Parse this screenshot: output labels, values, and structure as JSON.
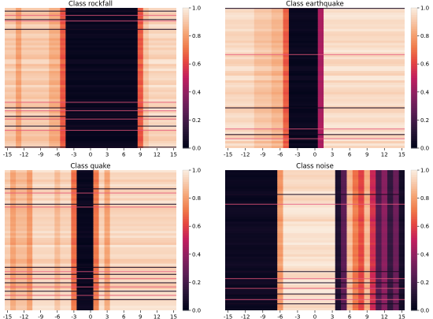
{
  "colorbar_ticks": [
    "0.0",
    "0.2",
    "0.4",
    "0.6",
    "0.8",
    "1.0"
  ],
  "colormap": {
    "name": "rocket",
    "stops": [
      [
        0.0,
        "#03051a"
      ],
      [
        0.13,
        "#2b1639"
      ],
      [
        0.25,
        "#5a1d54"
      ],
      [
        0.38,
        "#8a2060"
      ],
      [
        0.5,
        "#c11d5e"
      ],
      [
        0.62,
        "#e6473f"
      ],
      [
        0.72,
        "#f07a4a"
      ],
      [
        0.82,
        "#f5a474"
      ],
      [
        0.9,
        "#f7c4a3"
      ],
      [
        1.0,
        "#faebdd"
      ]
    ]
  },
  "chart_data": [
    {
      "type": "heatmap",
      "title": "Class rockfall",
      "x_ticks": [
        -15,
        -12,
        -9,
        -6,
        -3,
        0,
        3,
        6,
        9,
        12,
        15
      ],
      "x_range": [
        -15,
        16
      ],
      "value_range": [
        0,
        1
      ],
      "column_profile": [
        {
          "x0": -15,
          "x1": -13,
          "value": 0.92
        },
        {
          "x0": -13,
          "x1": -12,
          "value": 0.82
        },
        {
          "x0": -12,
          "x1": -7,
          "value": 0.92
        },
        {
          "x0": -7,
          "x1": -5,
          "value": 0.85
        },
        {
          "x0": -5,
          "x1": -4,
          "value": 0.66
        },
        {
          "x0": -4,
          "x1": 9,
          "value": 0.02
        },
        {
          "x0": 9,
          "x1": 10,
          "value": 0.66
        },
        {
          "x0": 10,
          "x1": 11,
          "value": 0.9
        },
        {
          "x0": 11,
          "x1": 16,
          "value": 0.95
        }
      ],
      "row_anomalies": [
        0.02,
        0.05,
        0.08,
        0.09,
        0.15,
        0.67,
        0.71,
        0.73,
        0.77,
        0.79,
        0.84,
        0.87,
        0.99
      ]
    },
    {
      "type": "heatmap",
      "title": "Class earthquake",
      "x_ticks": [
        -15,
        -12,
        -9,
        -6,
        -3,
        0,
        3,
        6,
        9,
        12,
        15
      ],
      "x_range": [
        -15,
        16
      ],
      "value_range": [
        0,
        1
      ],
      "column_profile": [
        {
          "x0": -15,
          "x1": -10,
          "value": 0.95
        },
        {
          "x0": -10,
          "x1": -7,
          "value": 0.9
        },
        {
          "x0": -7,
          "x1": -5,
          "value": 0.86
        },
        {
          "x0": -5,
          "x1": -4,
          "value": 0.66
        },
        {
          "x0": -4,
          "x1": 1,
          "value": 0.02
        },
        {
          "x0": 1,
          "x1": 2,
          "value": 0.45
        },
        {
          "x0": 2,
          "x1": 16,
          "value": 0.96
        }
      ],
      "row_anomalies": [
        0.0,
        0.33,
        0.71,
        0.86,
        0.9,
        0.93
      ]
    },
    {
      "type": "heatmap",
      "title": "Class quake",
      "x_ticks": [
        -15,
        -12,
        -9,
        -6,
        -3,
        0,
        3,
        6,
        9,
        12,
        15
      ],
      "x_range": [
        -15,
        16
      ],
      "value_range": [
        0,
        1
      ],
      "column_profile": [
        {
          "x0": -15,
          "x1": -14,
          "value": 0.92
        },
        {
          "x0": -14,
          "x1": -13,
          "value": 0.82
        },
        {
          "x0": -13,
          "x1": -11,
          "value": 0.88
        },
        {
          "x0": -11,
          "x1": -10,
          "value": 0.8
        },
        {
          "x0": -10,
          "x1": -6,
          "value": 0.95
        },
        {
          "x0": -6,
          "x1": -5,
          "value": 0.88
        },
        {
          "x0": -5,
          "x1": -3,
          "value": 0.94
        },
        {
          "x0": -3,
          "x1": -2,
          "value": 0.7
        },
        {
          "x0": -2,
          "x1": 1,
          "value": 0.02
        },
        {
          "x0": 1,
          "x1": 2,
          "value": 0.72
        },
        {
          "x0": 2,
          "x1": 3,
          "value": 0.94
        },
        {
          "x0": 3,
          "x1": 4,
          "value": 0.82
        },
        {
          "x0": 4,
          "x1": 16,
          "value": 0.95
        }
      ],
      "row_anomalies": [
        0.13,
        0.16,
        0.24,
        0.26,
        0.69,
        0.72,
        0.74,
        0.77,
        0.8,
        0.83,
        0.86,
        0.89,
        0.92
      ]
    },
    {
      "type": "heatmap",
      "title": "Class noise",
      "x_ticks": [
        -15,
        -12,
        -9,
        -6,
        -3,
        0,
        3,
        6,
        9,
        12,
        15
      ],
      "x_range": [
        -15,
        16
      ],
      "value_range": [
        0,
        1
      ],
      "column_profile": [
        {
          "x0": -15,
          "x1": -6,
          "value": 0.03
        },
        {
          "x0": -6,
          "x1": -5,
          "value": 0.8
        },
        {
          "x0": -5,
          "x1": 4,
          "value": 0.97
        },
        {
          "x0": 4,
          "x1": 5,
          "value": 0.08
        },
        {
          "x0": 5,
          "x1": 6,
          "value": 0.25
        },
        {
          "x0": 6,
          "x1": 7,
          "value": 0.88
        },
        {
          "x0": 7,
          "x1": 8,
          "value": 0.72
        },
        {
          "x0": 8,
          "x1": 9,
          "value": 0.62
        },
        {
          "x0": 9,
          "x1": 10,
          "value": 0.86
        },
        {
          "x0": 10,
          "x1": 11,
          "value": 0.55
        },
        {
          "x0": 11,
          "x1": 12,
          "value": 0.22
        },
        {
          "x0": 12,
          "x1": 13,
          "value": 0.38
        },
        {
          "x0": 13,
          "x1": 14,
          "value": 0.15
        },
        {
          "x0": 14,
          "x1": 15,
          "value": 0.3
        },
        {
          "x0": 15,
          "x1": 16,
          "value": 0.06
        }
      ],
      "row_anomalies": [
        0.17,
        0.24,
        0.72,
        0.77,
        0.8,
        0.84,
        0.88,
        0.92,
        0.95
      ]
    }
  ]
}
